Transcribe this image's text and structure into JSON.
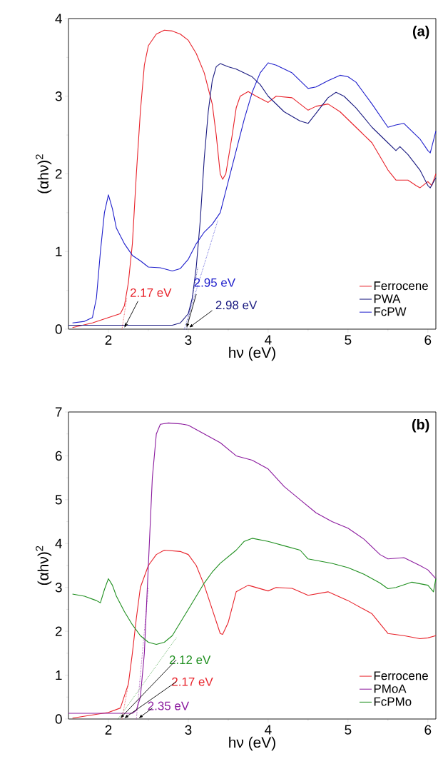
{
  "chart_data": [
    {
      "type": "line",
      "xlabel": "hν (eV)",
      "ylabel": "(αhν)$^{2}$",
      "xlim": [
        1.5,
        6.1
      ],
      "ylim": [
        0,
        4
      ],
      "xticks": [
        2,
        3,
        4,
        5,
        6
      ],
      "yticks": [
        0,
        1,
        2,
        3,
        4
      ],
      "legend": "bottom right",
      "grid": false,
      "annotations": [
        "(a)",
        {
          "text": "2.17 eV",
          "x": 2.17,
          "y": 0
        },
        {
          "text": "2.95 eV",
          "x": 2.95,
          "y": 0
        },
        {
          "text": "2.98 eV",
          "x": 2.98,
          "y": 0
        }
      ],
      "series": [
        {
          "name": "Ferrocene",
          "color": "#e8222a",
          "x": [
            1.55,
            1.8,
            2.0,
            2.15,
            2.2,
            2.25,
            2.3,
            2.35,
            2.4,
            2.45,
            2.5,
            2.6,
            2.7,
            2.8,
            2.9,
            3.0,
            3.1,
            3.2,
            3.3,
            3.35,
            3.4,
            3.43,
            3.47,
            3.55,
            3.6,
            3.65,
            3.75,
            3.85,
            4.0,
            4.1,
            4.3,
            4.5,
            4.6,
            4.75,
            4.9,
            5.1,
            5.3,
            5.5,
            5.6,
            5.75,
            5.85,
            5.9,
            6.0,
            6.05,
            6.1
          ],
          "values": [
            0.02,
            0.08,
            0.15,
            0.2,
            0.3,
            0.6,
            1.1,
            2.0,
            2.8,
            3.4,
            3.65,
            3.8,
            3.85,
            3.84,
            3.8,
            3.72,
            3.55,
            3.3,
            2.9,
            2.5,
            2.0,
            1.93,
            2.0,
            2.5,
            2.85,
            3.0,
            3.06,
            3.0,
            2.92,
            3.0,
            2.98,
            2.82,
            2.87,
            2.9,
            2.8,
            2.6,
            2.4,
            2.05,
            1.92,
            1.92,
            1.85,
            1.82,
            1.9,
            1.85,
            2.0
          ]
        },
        {
          "name": "PWA",
          "color": "#1a1a80",
          "x": [
            1.5,
            2.0,
            2.5,
            2.8,
            2.9,
            3.0,
            3.05,
            3.1,
            3.15,
            3.2,
            3.25,
            3.3,
            3.35,
            3.4,
            3.5,
            3.6,
            3.7,
            3.8,
            3.9,
            4.0,
            4.2,
            4.4,
            4.5,
            4.6,
            4.75,
            4.85,
            4.95,
            5.1,
            5.3,
            5.5,
            5.6,
            5.65,
            5.75,
            5.9,
            6.0,
            6.03,
            6.1
          ],
          "values": [
            0.05,
            0.05,
            0.05,
            0.05,
            0.08,
            0.2,
            0.4,
            0.8,
            1.4,
            2.2,
            2.8,
            3.2,
            3.38,
            3.42,
            3.38,
            3.35,
            3.3,
            3.25,
            3.15,
            3.0,
            2.8,
            2.68,
            2.65,
            2.78,
            2.98,
            3.05,
            3.0,
            2.85,
            2.6,
            2.4,
            2.3,
            2.35,
            2.25,
            2.05,
            1.85,
            1.82,
            1.95
          ]
        },
        {
          "name": "FcPW",
          "color": "#1f1fcc",
          "x": [
            1.55,
            1.7,
            1.8,
            1.85,
            1.9,
            1.95,
            2.0,
            2.05,
            2.1,
            2.2,
            2.3,
            2.4,
            2.5,
            2.65,
            2.8,
            2.9,
            3.0,
            3.1,
            3.2,
            3.3,
            3.4,
            3.5,
            3.6,
            3.7,
            3.8,
            3.9,
            4.0,
            4.1,
            4.3,
            4.5,
            4.6,
            4.75,
            4.9,
            5.0,
            5.1,
            5.3,
            5.5,
            5.6,
            5.7,
            5.8,
            5.9,
            6.0,
            6.03,
            6.1
          ],
          "values": [
            0.08,
            0.1,
            0.15,
            0.4,
            1.0,
            1.5,
            1.73,
            1.55,
            1.3,
            1.1,
            0.95,
            0.88,
            0.8,
            0.79,
            0.75,
            0.78,
            0.9,
            1.1,
            1.25,
            1.35,
            1.5,
            1.9,
            2.3,
            2.7,
            3.05,
            3.3,
            3.43,
            3.4,
            3.3,
            3.1,
            3.12,
            3.2,
            3.27,
            3.25,
            3.18,
            2.9,
            2.6,
            2.63,
            2.65,
            2.55,
            2.45,
            2.3,
            2.27,
            2.55
          ]
        },
        {
          "type": "line",
          "line_style": "dotted",
          "color": "#e8222a",
          "x": [
            2.17,
            2.23
          ],
          "values": [
            0,
            0.4
          ]
        },
        {
          "type": "line",
          "line_style": "dotted",
          "color": "#1f1fcc",
          "x": [
            2.95,
            3.37
          ],
          "values": [
            0,
            1.4
          ]
        },
        {
          "type": "line",
          "line_style": "dotted",
          "color": "#1a1a80",
          "x": [
            2.98,
            3.12
          ],
          "values": [
            0,
            0.8
          ]
        }
      ]
    },
    {
      "type": "line",
      "xlabel": "hν (eV)",
      "ylabel": "(αhν)$^{2}$",
      "xlim": [
        1.5,
        6.1
      ],
      "ylim": [
        0,
        7
      ],
      "xticks": [
        2,
        3,
        4,
        5,
        6
      ],
      "yticks": [
        0,
        1,
        2,
        3,
        4,
        5,
        6,
        7
      ],
      "legend": "bottom right",
      "grid": false,
      "annotations": [
        "(b)",
        {
          "text": "2.12 eV",
          "x": 2.12,
          "y": 0
        },
        {
          "text": "2.17 eV",
          "x": 2.17,
          "y": 0
        },
        {
          "text": "2.35 eV",
          "x": 2.35,
          "y": 0
        }
      ],
      "series": [
        {
          "name": "Ferrocene",
          "color": "#e8222a",
          "x": [
            1.55,
            2.0,
            2.15,
            2.25,
            2.3,
            2.35,
            2.4,
            2.5,
            2.6,
            2.7,
            2.9,
            3.0,
            3.1,
            3.2,
            3.3,
            3.4,
            3.43,
            3.5,
            3.6,
            3.75,
            4.0,
            4.1,
            4.3,
            4.5,
            4.75,
            5.0,
            5.3,
            5.5,
            5.7,
            5.9,
            6.0,
            6.1
          ],
          "values": [
            0.02,
            0.15,
            0.25,
            0.8,
            1.5,
            2.3,
            3.0,
            3.5,
            3.75,
            3.85,
            3.82,
            3.75,
            3.5,
            3.05,
            2.5,
            1.95,
            1.93,
            2.2,
            2.9,
            3.05,
            2.92,
            3.0,
            2.98,
            2.82,
            2.9,
            2.7,
            2.4,
            1.95,
            1.9,
            1.83,
            1.85,
            1.9
          ]
        },
        {
          "name": "PMoA",
          "color": "#8b1a9e",
          "x": [
            1.5,
            2.0,
            2.3,
            2.35,
            2.4,
            2.45,
            2.5,
            2.55,
            2.6,
            2.65,
            2.75,
            2.9,
            3.0,
            3.2,
            3.4,
            3.6,
            3.8,
            4.0,
            4.2,
            4.4,
            4.6,
            4.8,
            5.0,
            5.2,
            5.4,
            5.5,
            5.7,
            5.9,
            6.0,
            6.1
          ],
          "values": [
            0.13,
            0.13,
            0.13,
            0.2,
            0.5,
            1.5,
            3.5,
            5.5,
            6.5,
            6.72,
            6.75,
            6.73,
            6.7,
            6.5,
            6.3,
            6.0,
            5.9,
            5.7,
            5.3,
            5.0,
            4.7,
            4.5,
            4.35,
            4.1,
            3.75,
            3.65,
            3.68,
            3.5,
            3.4,
            3.2
          ]
        },
        {
          "name": "FcPMo",
          "color": "#1f8f1f",
          "x": [
            1.55,
            1.7,
            1.85,
            1.9,
            1.95,
            2.0,
            2.05,
            2.1,
            2.2,
            2.3,
            2.4,
            2.5,
            2.6,
            2.7,
            2.8,
            2.9,
            3.0,
            3.1,
            3.2,
            3.3,
            3.4,
            3.5,
            3.6,
            3.7,
            3.8,
            4.0,
            4.2,
            4.4,
            4.5,
            4.8,
            5.0,
            5.2,
            5.4,
            5.5,
            5.6,
            5.8,
            6.0,
            6.07,
            6.1
          ],
          "values": [
            2.85,
            2.8,
            2.7,
            2.65,
            2.95,
            3.2,
            3.05,
            2.8,
            2.45,
            2.15,
            1.9,
            1.75,
            1.7,
            1.75,
            1.9,
            2.2,
            2.5,
            2.8,
            3.1,
            3.35,
            3.55,
            3.7,
            3.85,
            4.05,
            4.12,
            4.05,
            3.95,
            3.85,
            3.65,
            3.55,
            3.45,
            3.3,
            3.1,
            2.97,
            3.0,
            3.12,
            3.05,
            2.9,
            3.2
          ]
        },
        {
          "type": "line",
          "line_style": "dotted",
          "color": "#1f8f1f",
          "x": [
            2.12,
            2.85
          ],
          "values": [
            0,
            1.85
          ]
        },
        {
          "type": "line",
          "line_style": "dotted",
          "color": "#e8222a",
          "x": [
            2.17,
            2.25
          ],
          "values": [
            0,
            0.8
          ]
        },
        {
          "type": "line",
          "line_style": "dotted",
          "color": "#8b1a9e",
          "x": [
            2.35,
            2.5
          ],
          "values": [
            0,
            3.0
          ]
        }
      ]
    }
  ]
}
